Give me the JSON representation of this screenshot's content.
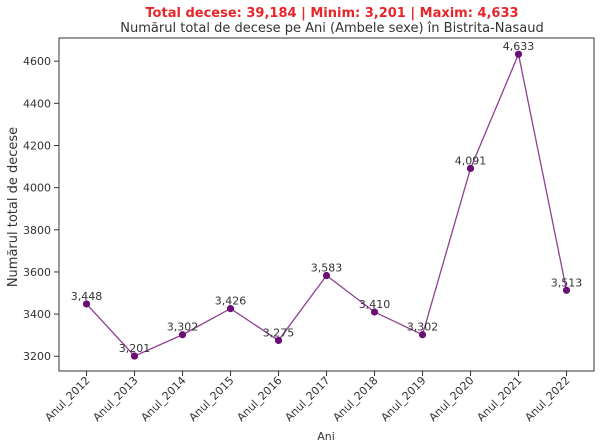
{
  "chart_data": {
    "type": "line",
    "stats_text": "Total decese: 39,184 | Minim: 3,201 | Maxim: 4,633",
    "title": "Numărul total de decese pe Ani (Ambele sexe) în Bistrita-Nasaud",
    "xlabel": "Ani",
    "ylabel": "Numărul total de decese",
    "categories": [
      "Anul_2012",
      "Anul_2013",
      "Anul_2014",
      "Anul_2015",
      "Anul_2016",
      "Anul_2017",
      "Anul_2018",
      "Anul_2019",
      "Anul_2020",
      "Anul_2021",
      "Anul_2022"
    ],
    "values": [
      3448,
      3201,
      3302,
      3426,
      3275,
      3583,
      3410,
      3302,
      4091,
      4633,
      3513
    ],
    "value_labels": [
      "3,448",
      "3,201",
      "3,302",
      "3,426",
      "3,275",
      "3,583",
      "3,410",
      "3,302",
      "4,091",
      "4,633",
      "3,513"
    ],
    "ylim": [
      3130,
      4710
    ],
    "yticks": [
      3200,
      3400,
      3600,
      3800,
      4000,
      4200,
      4400,
      4600
    ],
    "grid": false,
    "colors": {
      "stats": "#e8262a",
      "line": "#8e3f93",
      "marker": "#6a0f73",
      "text": "#333333",
      "axis": "#333333"
    }
  }
}
